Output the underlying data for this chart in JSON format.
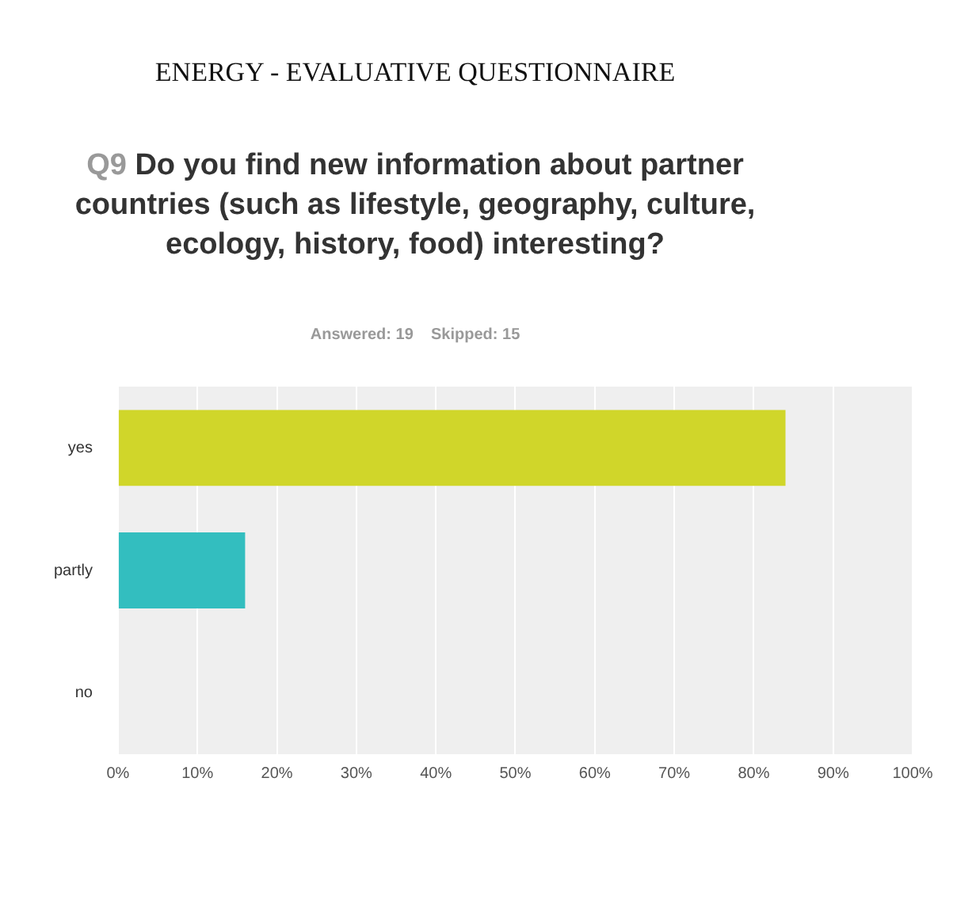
{
  "chart_data": {
    "type": "bar",
    "orientation": "horizontal",
    "title": "ENERGY - EVALUATIVE QUESTIONNAIRE",
    "subtitle": "Q9 Do you find new information about partner countries (such as lifestyle, geography, culture, ecology, history, food) interesting?",
    "annotations": [
      "Answered: 19    Skipped: 15"
    ],
    "categories": [
      "yes",
      "partly",
      "no"
    ],
    "values": [
      84,
      16,
      0
    ],
    "colors": [
      "#d0d62a",
      "#33bebf",
      "#888888"
    ],
    "xlim": [
      0,
      100
    ],
    "xticks": [
      {
        "value": 0,
        "label": "0%"
      },
      {
        "value": 10,
        "label": "10%"
      },
      {
        "value": 20,
        "label": "20%"
      },
      {
        "value": 30,
        "label": "30%"
      },
      {
        "value": 40,
        "label": "40%"
      },
      {
        "value": 50,
        "label": "50%"
      },
      {
        "value": 60,
        "label": "60%"
      },
      {
        "value": 70,
        "label": "70%"
      },
      {
        "value": 80,
        "label": "80%"
      },
      {
        "value": 90,
        "label": "90%"
      },
      {
        "value": 100,
        "label": "100%"
      }
    ],
    "grid": "x",
    "legend": false
  }
}
